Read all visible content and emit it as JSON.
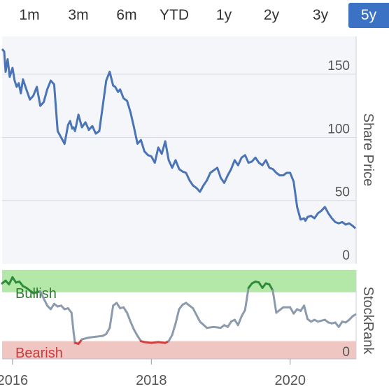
{
  "range_tabs": [
    {
      "label": "1m",
      "active": false
    },
    {
      "label": "3m",
      "active": false
    },
    {
      "label": "6m",
      "active": false
    },
    {
      "label": "YTD",
      "active": false
    },
    {
      "label": "1y",
      "active": false
    },
    {
      "label": "2y",
      "active": false
    },
    {
      "label": "3y",
      "active": false
    },
    {
      "label": "5y",
      "active": true
    }
  ],
  "colors": {
    "price_line": "#4a74b5",
    "rank_line": "#8c9aad",
    "bullish_line": "#2e8b3a",
    "bearish_line": "#d04040",
    "bullish_band": "#b4e8a8",
    "bearish_band": "#efc6c2",
    "active_tab": "#3b72c3"
  },
  "chart_data": [
    {
      "type": "line",
      "ylabel": "Share Price",
      "ylim": [
        0,
        180
      ],
      "yticks": [
        0,
        50,
        100,
        150
      ],
      "grid": true,
      "series": [
        {
          "x": [
            2015.85,
            2015.88,
            2015.9,
            2015.93,
            2015.96,
            2016.0,
            2016.03,
            2016.06,
            2016.09,
            2016.12,
            2016.15,
            2016.2,
            2016.25,
            2016.3,
            2016.35,
            2016.4,
            2016.45,
            2016.5,
            2016.55,
            2016.6,
            2016.65,
            2016.7,
            2016.75,
            2016.8,
            2016.83,
            2016.86,
            2016.88,
            2016.9,
            2016.95,
            2017.0,
            2017.05,
            2017.1,
            2017.15,
            2017.2,
            2017.25,
            2017.3,
            2017.35,
            2017.4,
            2017.45,
            2017.48,
            2017.52,
            2017.55,
            2017.6,
            2017.65,
            2017.7,
            2017.75,
            2017.8,
            2017.85,
            2017.9,
            2017.95,
            2018.0,
            2018.05,
            2018.1,
            2018.15,
            2018.2,
            2018.25,
            2018.3,
            2018.35,
            2018.4,
            2018.45,
            2018.5,
            2018.55,
            2018.6,
            2018.65,
            2018.7,
            2018.75,
            2018.8,
            2018.85,
            2018.9,
            2018.95,
            2019.0,
            2019.05,
            2019.1,
            2019.15,
            2019.2,
            2019.25,
            2019.3,
            2019.35,
            2019.4,
            2019.45,
            2019.5,
            2019.55,
            2019.6,
            2019.65,
            2019.7,
            2019.75,
            2019.8,
            2019.85,
            2019.9,
            2019.95,
            2020.0,
            2020.05,
            2020.1,
            2020.15,
            2020.2,
            2020.22,
            2020.25,
            2020.3,
            2020.35,
            2020.4,
            2020.45,
            2020.5,
            2020.55,
            2020.6,
            2020.65,
            2020.7,
            2020.75,
            2020.8,
            2020.85,
            2020.9,
            2020.94
          ],
          "values": [
            170,
            168,
            152,
            162,
            148,
            155,
            145,
            140,
            143,
            135,
            146,
            138,
            130,
            133,
            140,
            125,
            128,
            138,
            145,
            142,
            105,
            100,
            95,
            110,
            113,
            107,
            108,
            105,
            118,
            108,
            112,
            106,
            109,
            103,
            105,
            125,
            145,
            152,
            141,
            140,
            136,
            138,
            131,
            129,
            120,
            108,
            95,
            98,
            89,
            86,
            85,
            80,
            92,
            87,
            97,
            82,
            76,
            82,
            75,
            73,
            72,
            66,
            62,
            60,
            57,
            62,
            66,
            72,
            74,
            76,
            68,
            64,
            70,
            75,
            82,
            78,
            84,
            86,
            80,
            81,
            84,
            80,
            78,
            82,
            76,
            75,
            72,
            70,
            70,
            72,
            72,
            65,
            45,
            35,
            36,
            34,
            37,
            38,
            36,
            40,
            42,
            45,
            40,
            36,
            33,
            32,
            33,
            31,
            32,
            30,
            28
          ]
        }
      ]
    },
    {
      "type": "line",
      "ylabel": "StockRank",
      "xlabel": "",
      "xlim": [
        2015.85,
        2020.95
      ],
      "ylim": [
        0,
        100
      ],
      "xticks": [
        2016,
        2018,
        2020
      ],
      "xtick_labels": [
        "2016",
        "2018",
        "2020"
      ],
      "yticks": [
        0
      ],
      "band_labels": {
        "bullish": "Bullish",
        "bearish": "Bearish"
      },
      "thresholds": {
        "bullish": 75,
        "bearish": 20
      },
      "series": [
        {
          "x": [
            2015.85,
            2015.9,
            2015.95,
            2016.0,
            2016.05,
            2016.1,
            2016.15,
            2016.2,
            2016.3,
            2016.4,
            2016.45,
            2016.5,
            2016.55,
            2016.6,
            2016.65,
            2016.7,
            2016.75,
            2016.8,
            2016.85,
            2016.88,
            2016.9,
            2016.95,
            2017.0,
            2017.1,
            2017.2,
            2017.3,
            2017.35,
            2017.4,
            2017.45,
            2017.5,
            2017.55,
            2017.6,
            2017.65,
            2017.7,
            2017.75,
            2017.8,
            2017.85,
            2017.9,
            2018.0,
            2018.1,
            2018.2,
            2018.25,
            2018.3,
            2018.35,
            2018.4,
            2018.45,
            2018.5,
            2018.55,
            2018.6,
            2018.7,
            2018.8,
            2018.9,
            2019.0,
            2019.05,
            2019.1,
            2019.15,
            2019.2,
            2019.25,
            2019.3,
            2019.35,
            2019.4,
            2019.45,
            2019.5,
            2019.55,
            2019.6,
            2019.65,
            2019.7,
            2019.75,
            2019.8,
            2019.85,
            2019.9,
            2020.0,
            2020.05,
            2020.1,
            2020.15,
            2020.2,
            2020.25,
            2020.3,
            2020.35,
            2020.4,
            2020.5,
            2020.55,
            2020.6,
            2020.65,
            2020.7,
            2020.75,
            2020.8,
            2020.85,
            2020.9,
            2020.94
          ],
          "values": [
            85,
            88,
            84,
            92,
            86,
            87,
            82,
            80,
            74,
            76,
            68,
            60,
            56,
            62,
            59,
            60,
            56,
            57,
            52,
            30,
            18,
            17,
            22,
            24,
            25,
            26,
            28,
            35,
            60,
            63,
            57,
            58,
            52,
            42,
            33,
            26,
            20,
            19,
            18,
            19,
            18,
            20,
            27,
            40,
            56,
            61,
            63,
            60,
            57,
            42,
            35,
            36,
            35,
            38,
            36,
            42,
            44,
            38,
            48,
            55,
            80,
            85,
            87,
            86,
            80,
            85,
            84,
            77,
            52,
            55,
            58,
            58,
            51,
            56,
            54,
            60,
            45,
            42,
            44,
            42,
            44,
            41,
            40,
            41,
            36,
            42,
            41,
            44,
            48,
            50
          ]
        }
      ]
    }
  ]
}
